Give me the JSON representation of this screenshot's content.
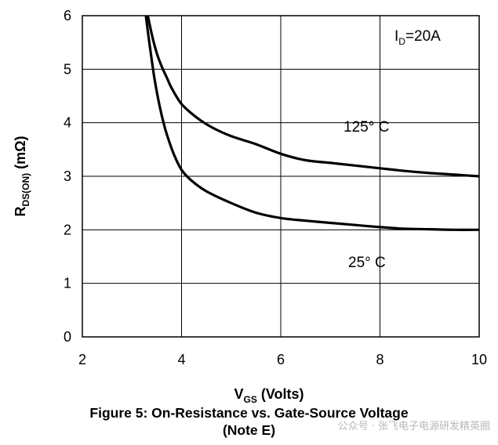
{
  "chart_data": {
    "type": "line",
    "title": "Figure 5: On-Resistance vs. Gate-Source Voltage",
    "subtitle": "(Note E)",
    "xlabel": {
      "main": "V",
      "sub": "GS",
      "rest": " (Volts)"
    },
    "ylabel": {
      "main": "R",
      "sub": "DS(ON)",
      "rest": " (mΩ)"
    },
    "xlim": [
      2,
      10
    ],
    "ylim": [
      0,
      6
    ],
    "xticks": [
      2,
      4,
      6,
      8,
      10
    ],
    "yticks": [
      0,
      1,
      2,
      3,
      4,
      5,
      6
    ],
    "grid": true,
    "condition": {
      "main": "I",
      "sub": "D",
      "rest": "=20A"
    },
    "series": [
      {
        "name": "125° C",
        "x": [
          3.32,
          3.4,
          3.5,
          3.6,
          3.7,
          3.8,
          4.0,
          4.3,
          4.6,
          5.0,
          5.5,
          6.0,
          6.5,
          7.0,
          7.5,
          8.0,
          8.5,
          9.0,
          9.5,
          10.0
        ],
        "y": [
          6.0,
          5.65,
          5.3,
          5.05,
          4.85,
          4.65,
          4.35,
          4.1,
          3.92,
          3.75,
          3.6,
          3.42,
          3.3,
          3.25,
          3.2,
          3.15,
          3.1,
          3.06,
          3.03,
          3.0
        ]
      },
      {
        "name": "25° C",
        "x": [
          3.28,
          3.35,
          3.45,
          3.55,
          3.65,
          3.75,
          3.85,
          4.0,
          4.2,
          4.5,
          5.0,
          5.5,
          6.0,
          6.5,
          7.0,
          7.5,
          8.0,
          8.5,
          9.0,
          9.5,
          10.0
        ],
        "y": [
          6.0,
          5.5,
          4.85,
          4.35,
          3.95,
          3.65,
          3.4,
          3.12,
          2.92,
          2.72,
          2.5,
          2.32,
          2.22,
          2.17,
          2.13,
          2.09,
          2.05,
          2.02,
          2.01,
          2.0,
          2.0
        ]
      }
    ],
    "labels": [
      "125° C",
      "25° C"
    ]
  },
  "watermark": "公众号 · 张飞电子电源研发精英圈"
}
